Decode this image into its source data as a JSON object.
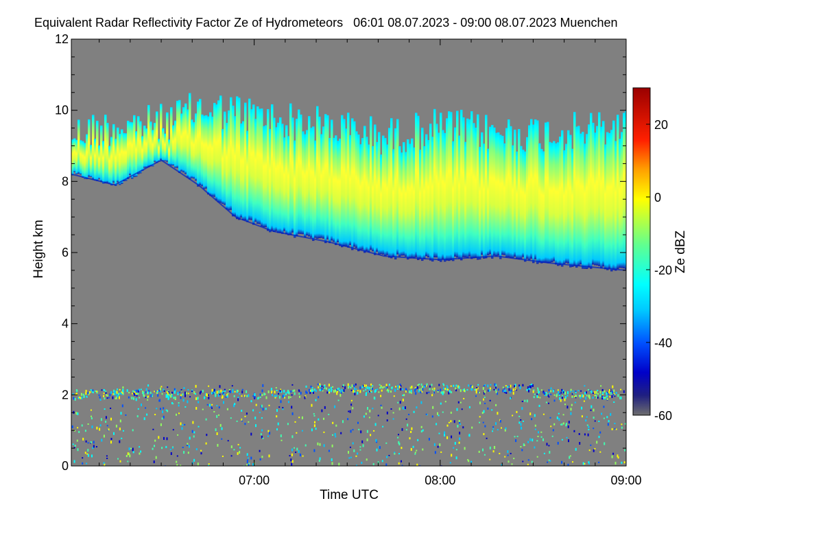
{
  "chart_data": {
    "type": "heatmap",
    "title": "Equivalent Radar Reflectivity Factor Ze of Hydrometeors   06:01 08.07.2023 - 09:00 08.07.2023 Muenchen",
    "xlabel": "Time UTC",
    "ylabel": "Height km",
    "colorbar_label": "Ze dBZ",
    "x_ticks": [
      {
        "value": 7,
        "label": "07:00"
      },
      {
        "value": 8,
        "label": "08:00"
      },
      {
        "value": 9,
        "label": "09:00"
      }
    ],
    "xlim": [
      6.0167,
      9.0
    ],
    "y_ticks": [
      0,
      2,
      4,
      6,
      8,
      10,
      12
    ],
    "ylim": [
      0,
      12
    ],
    "colorbar_ticks": [
      20,
      0,
      -20,
      -40,
      -60
    ],
    "colorbar_range": [
      -60,
      30
    ],
    "background_color": "#808080",
    "colormap": [
      "#6e6e6e",
      "#0000c8",
      "#0050ff",
      "#00c8ff",
      "#00ffff",
      "#40ffb0",
      "#90ff60",
      "#ffff00",
      "#ffc000",
      "#ff6000",
      "#ff0000",
      "#a00000"
    ],
    "cloud_layer": {
      "description_units": "km",
      "top_km": [
        9.9,
        10.1,
        10.2,
        10.6,
        10.5,
        10.3,
        10.1,
        9.8,
        10.1,
        9.9,
        9.9,
        10.1
      ],
      "base_km": [
        8.2,
        7.9,
        8.6,
        7.9,
        7.0,
        6.6,
        6.3,
        5.9,
        5.8,
        5.9,
        5.7,
        5.5
      ],
      "x_hours": [
        6.02,
        6.25,
        6.5,
        6.7,
        6.9,
        7.1,
        7.4,
        7.7,
        8.0,
        8.3,
        8.6,
        9.0
      ]
    },
    "low_clutter": {
      "height_range_km": [
        0,
        2.3
      ],
      "melting_layer_km": 2.05
    }
  }
}
